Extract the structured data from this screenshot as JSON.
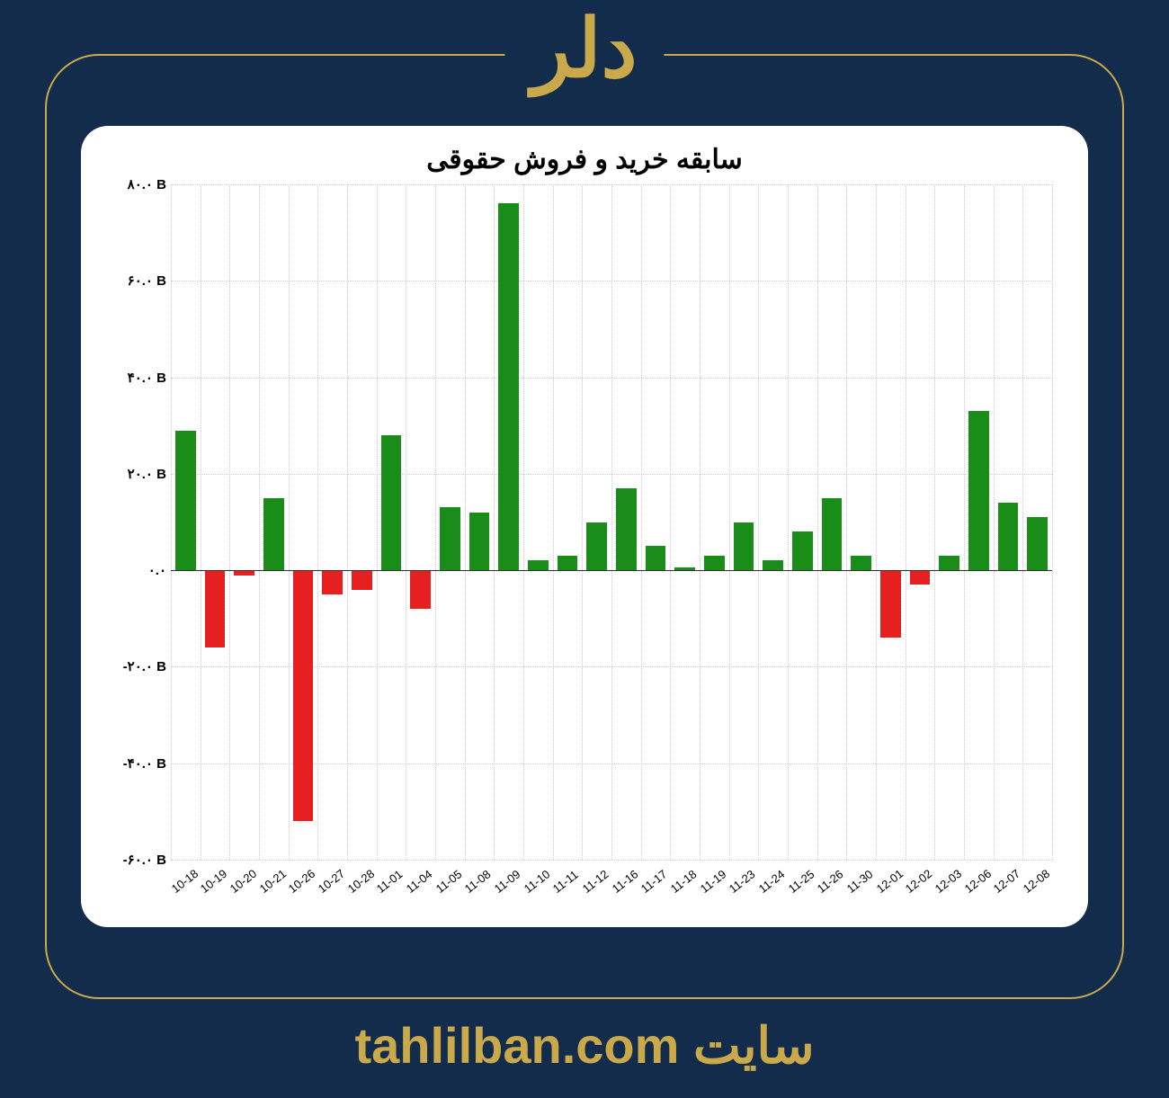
{
  "page": {
    "background_color": "#132c4b",
    "frame_border_color": "#c9a94a",
    "accent_color": "#c9a94a"
  },
  "header": {
    "title": "دلر",
    "title_color": "#c9a94a",
    "title_fontsize": 90
  },
  "footer": {
    "label": "سایت ",
    "url_text": "tahlilban.com",
    "text_color": "#c9a94a",
    "fontsize": 56
  },
  "chart": {
    "type": "bar",
    "title": "سابقه خرید و فروش حقوقی",
    "title_fontsize": 30,
    "title_color": "#000000",
    "background_color": "#ffffff",
    "grid_color": "#cccccc",
    "positive_color": "#1a8c1a",
    "negative_color": "#e62020",
    "bar_width_ratio": 0.7,
    "ylim": [
      -60,
      80
    ],
    "ytick_step": 20,
    "y_unit_suffix": " B",
    "y_ticks": [
      {
        "value": -60,
        "label": "-۶۰.۰ B"
      },
      {
        "value": -40,
        "label": "-۴۰.۰ B"
      },
      {
        "value": -20,
        "label": "-۲۰.۰ B"
      },
      {
        "value": 0,
        "label": "۰.۰"
      },
      {
        "value": 20,
        "label": "۲۰.۰ B"
      },
      {
        "value": 40,
        "label": "۴۰.۰ B"
      },
      {
        "value": 60,
        "label": "۶۰.۰ B"
      },
      {
        "value": 80,
        "label": "۸۰.۰ B"
      }
    ],
    "categories": [
      "10-18",
      "10-19",
      "10-20",
      "10-21",
      "10-26",
      "10-27",
      "10-28",
      "11-01",
      "11-04",
      "11-05",
      "11-08",
      "11-09",
      "11-10",
      "11-11",
      "11-12",
      "11-16",
      "11-17",
      "11-18",
      "11-19",
      "11-23",
      "11-24",
      "11-25",
      "11-26",
      "11-30",
      "12-01",
      "12-02",
      "12-03",
      "12-06",
      "12-07",
      "12-08"
    ],
    "values": [
      29,
      -16,
      -1,
      15,
      -52,
      -5,
      -4,
      28,
      -8,
      13,
      12,
      76,
      2,
      3,
      10,
      17,
      5,
      0.5,
      3,
      10,
      2,
      8,
      15,
      3,
      -14,
      -3,
      3,
      33,
      14,
      11
    ],
    "x_label_fontsize": 13,
    "y_label_fontsize": 15
  }
}
